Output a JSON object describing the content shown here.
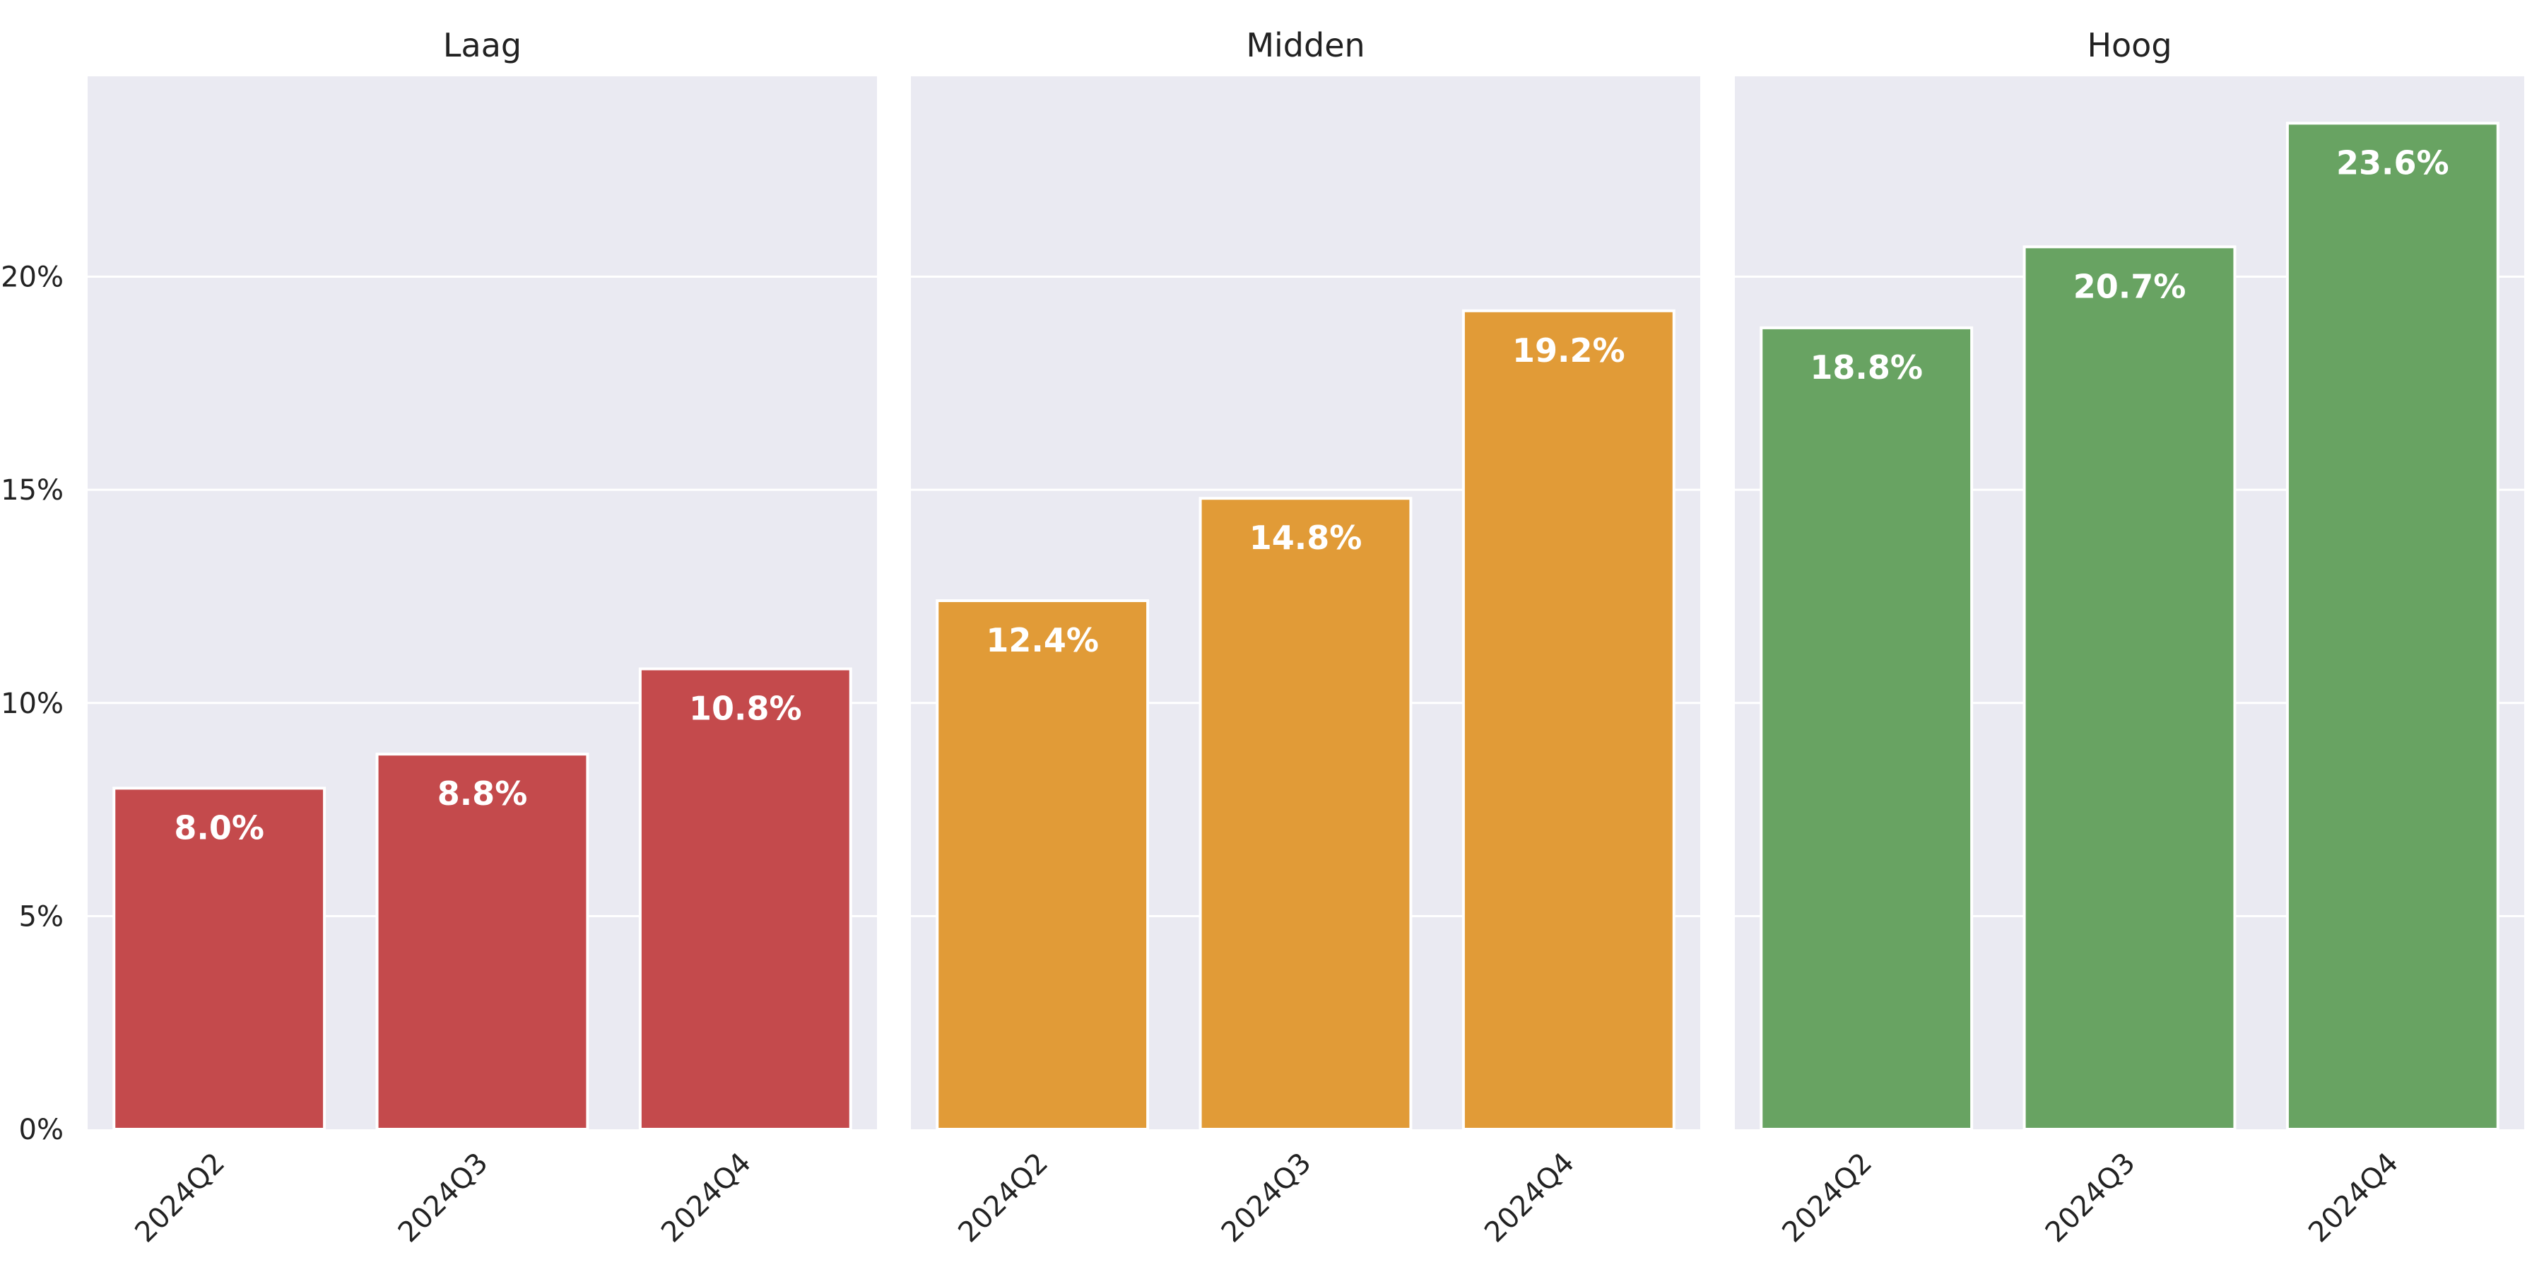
{
  "chart_data": {
    "type": "bar",
    "panels": [
      {
        "title": "Laag",
        "color": "#c44a4c",
        "categories": [
          "2024Q2",
          "2024Q3",
          "2024Q4"
        ],
        "values": [
          8.0,
          8.8,
          10.8
        ],
        "labels": [
          "8.0%",
          "8.8%",
          "10.8%"
        ]
      },
      {
        "title": "Midden",
        "color": "#e19b37",
        "categories": [
          "2024Q2",
          "2024Q3",
          "2024Q4"
        ],
        "values": [
          12.4,
          14.8,
          19.2
        ],
        "labels": [
          "12.4%",
          "14.8%",
          "19.2%"
        ]
      },
      {
        "title": "Hoog",
        "color": "#68a362",
        "categories": [
          "2024Q2",
          "2024Q3",
          "2024Q4"
        ],
        "values": [
          18.8,
          20.7,
          23.6
        ],
        "labels": [
          "18.8%",
          "20.7%",
          "23.6%"
        ]
      }
    ],
    "ylim": [
      0,
      24.7
    ],
    "yticks": [
      0,
      5,
      10,
      15,
      20
    ],
    "ytick_labels": [
      "0%",
      "5%",
      "10%",
      "15%",
      "20%"
    ],
    "shared_y": true,
    "grid": true,
    "legend": "none"
  }
}
